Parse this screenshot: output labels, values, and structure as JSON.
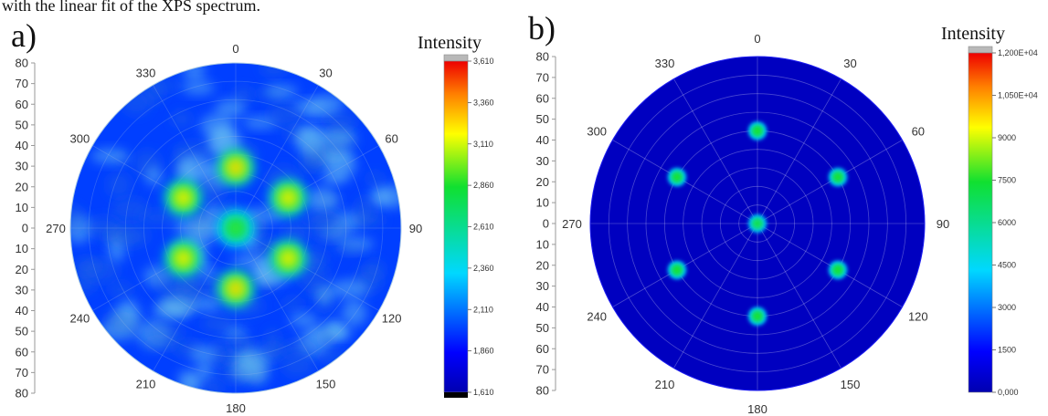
{
  "caption": "with the linear fit of the XPS spectrum.",
  "chart_data": [
    {
      "type": "heatmap",
      "panel_label": "a)",
      "colorbar_title": "Intensity",
      "radial_ticks": [
        "80",
        "70",
        "60",
        "50",
        "40",
        "30",
        "20",
        "10",
        "0",
        "10",
        "20",
        "30",
        "40",
        "50",
        "60",
        "70",
        "80"
      ],
      "angle_labels": [
        "0",
        "30",
        "60",
        "90",
        "120",
        "150",
        "180",
        "210",
        "240",
        "270",
        "300",
        "330"
      ],
      "colorbar_ticks": [
        "3,610",
        "3,360",
        "3,110",
        "2,860",
        "2,610",
        "2,360",
        "2,110",
        "1,860",
        "1,610"
      ],
      "color_range": [
        1610,
        3610
      ],
      "background_level": 1990,
      "grid": true,
      "peaks": [
        {
          "phi": 0,
          "psi": 0,
          "value": 2900
        },
        {
          "phi": 0,
          "psi": 33,
          "value": 3250
        },
        {
          "phi": 60,
          "psi": 33,
          "value": 3200
        },
        {
          "phi": 120,
          "psi": 33,
          "value": 3200
        },
        {
          "phi": 180,
          "psi": 33,
          "value": 3250
        },
        {
          "phi": 240,
          "psi": 33,
          "value": 3200
        },
        {
          "phi": 300,
          "psi": 33,
          "value": 3200
        }
      ]
    },
    {
      "type": "heatmap",
      "panel_label": "b)",
      "colorbar_title": "Intensity",
      "radial_ticks": [
        "80",
        "70",
        "60",
        "50",
        "40",
        "30",
        "20",
        "10",
        "0",
        "10",
        "20",
        "30",
        "40",
        "50",
        "60",
        "70",
        "80"
      ],
      "angle_labels": [
        "0",
        "30",
        "60",
        "90",
        "120",
        "150",
        "180",
        "210",
        "240",
        "270",
        "300",
        "330"
      ],
      "colorbar_ticks": [
        "1,200E+04",
        "1,050E+04",
        "9000",
        "7500",
        "6000",
        "4500",
        "3000",
        "1500",
        "0,000"
      ],
      "color_range": [
        0,
        12000
      ],
      "background_level": 300,
      "grid": true,
      "peaks": [
        {
          "phi": 0,
          "psi": 0,
          "value": 7000
        },
        {
          "phi": 0,
          "psi": 50,
          "value": 7500
        },
        {
          "phi": 60,
          "psi": 50,
          "value": 7500
        },
        {
          "phi": 120,
          "psi": 50,
          "value": 7500
        },
        {
          "phi": 180,
          "psi": 50,
          "value": 7500
        },
        {
          "phi": 240,
          "psi": 50,
          "value": 7500
        },
        {
          "phi": 300,
          "psi": 50,
          "value": 7500
        }
      ]
    }
  ]
}
